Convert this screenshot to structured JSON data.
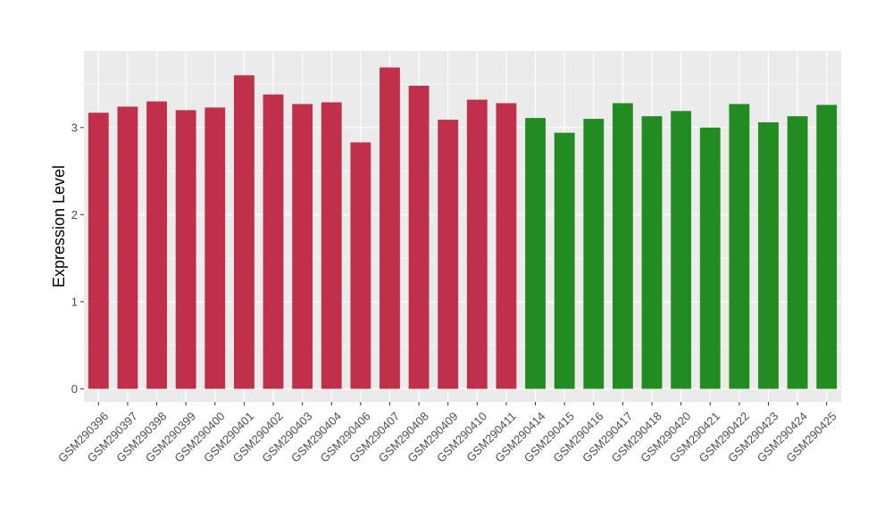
{
  "chart_data": {
    "type": "bar",
    "title": "",
    "xlabel": "",
    "ylabel": "Expression Level",
    "ylim": [
      -0.15,
      3.88
    ],
    "yticks": [
      0,
      1,
      2,
      3
    ],
    "grid": true,
    "legend": "none",
    "categories": [
      "GSM290396",
      "GSM290397",
      "GSM290398",
      "GSM290399",
      "GSM290400",
      "GSM290401",
      "GSM290402",
      "GSM290403",
      "GSM290404",
      "GSM290406",
      "GSM290407",
      "GSM290408",
      "GSM290409",
      "GSM290410",
      "GSM290411",
      "GSM290414",
      "GSM290415",
      "GSM290416",
      "GSM290417",
      "GSM290418",
      "GSM290420",
      "GSM290421",
      "GSM290422",
      "GSM290423",
      "GSM290424",
      "GSM290425"
    ],
    "values": [
      3.17,
      3.24,
      3.3,
      3.2,
      3.23,
      3.6,
      3.38,
      3.27,
      3.29,
      2.83,
      3.69,
      3.48,
      3.09,
      3.32,
      3.28,
      3.11,
      2.94,
      3.1,
      3.28,
      3.13,
      3.19,
      3.0,
      3.27,
      3.06,
      3.13,
      3.26
    ],
    "groups": [
      0,
      0,
      0,
      0,
      0,
      0,
      0,
      0,
      0,
      0,
      0,
      0,
      0,
      0,
      0,
      1,
      1,
      1,
      1,
      1,
      1,
      1,
      1,
      1,
      1,
      1
    ],
    "colors": [
      "#c0304a",
      "#228b22"
    ],
    "panel_background": "#ebebeb",
    "grid_color": "#ffffff"
  }
}
